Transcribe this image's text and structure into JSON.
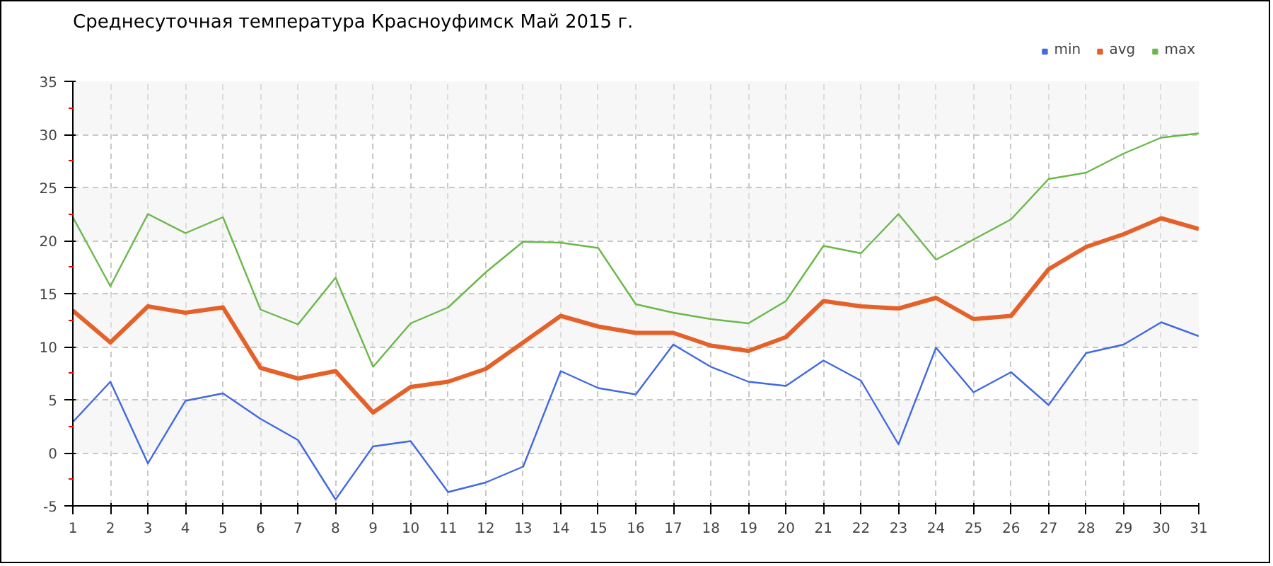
{
  "chart_data": {
    "type": "line",
    "title": "Среднесуточная температура Красноуфимск  Май 2015 г.",
    "x": [
      1,
      2,
      3,
      4,
      5,
      6,
      7,
      8,
      9,
      10,
      11,
      12,
      13,
      14,
      15,
      16,
      17,
      18,
      19,
      20,
      21,
      22,
      23,
      24,
      25,
      26,
      27,
      28,
      29,
      30,
      31
    ],
    "series": [
      {
        "name": "min",
        "color": "#4169e1",
        "values": [
          2.9,
          6.7,
          -1.0,
          4.9,
          5.6,
          3.2,
          1.2,
          -4.4,
          0.6,
          1.1,
          -3.7,
          -2.8,
          -1.3,
          7.7,
          6.1,
          5.5,
          10.2,
          8.1,
          6.7,
          6.3,
          8.7,
          6.8,
          0.8,
          9.9,
          5.7,
          7.6,
          4.5,
          9.4,
          10.2,
          12.3,
          11.0
        ]
      },
      {
        "name": "avg",
        "color": "#e4622a",
        "values": [
          13.4,
          10.4,
          13.8,
          13.2,
          13.7,
          8.0,
          7.0,
          7.7,
          3.8,
          6.2,
          6.7,
          7.9,
          10.4,
          12.9,
          11.9,
          11.3,
          11.3,
          10.1,
          9.6,
          10.9,
          14.3,
          13.8,
          13.6,
          14.6,
          12.6,
          12.9,
          17.3,
          19.4,
          20.6,
          22.1,
          21.1
        ]
      },
      {
        "name": "max",
        "color": "#6ab84a",
        "values": [
          22.2,
          15.7,
          22.5,
          20.7,
          22.2,
          13.5,
          12.1,
          16.5,
          8.1,
          12.2,
          13.7,
          17.0,
          19.9,
          19.8,
          19.3,
          14.0,
          13.2,
          12.6,
          12.2,
          14.3,
          19.5,
          18.8,
          22.5,
          18.2,
          20.1,
          22.0,
          25.8,
          26.4,
          28.2,
          29.7,
          30.1
        ]
      }
    ],
    "xlim": [
      1,
      31
    ],
    "xticks": [
      1,
      2,
      3,
      4,
      5,
      6,
      7,
      8,
      9,
      10,
      11,
      12,
      13,
      14,
      15,
      16,
      17,
      18,
      19,
      20,
      21,
      22,
      23,
      24,
      25,
      26,
      27,
      28,
      29,
      30,
      31
    ],
    "ylim": [
      -5,
      35
    ],
    "yticks": [
      -5,
      0,
      5,
      10,
      15,
      20,
      25,
      30,
      35
    ],
    "grid": true,
    "legend": "top right",
    "marker": "none",
    "line_style": "solid"
  }
}
